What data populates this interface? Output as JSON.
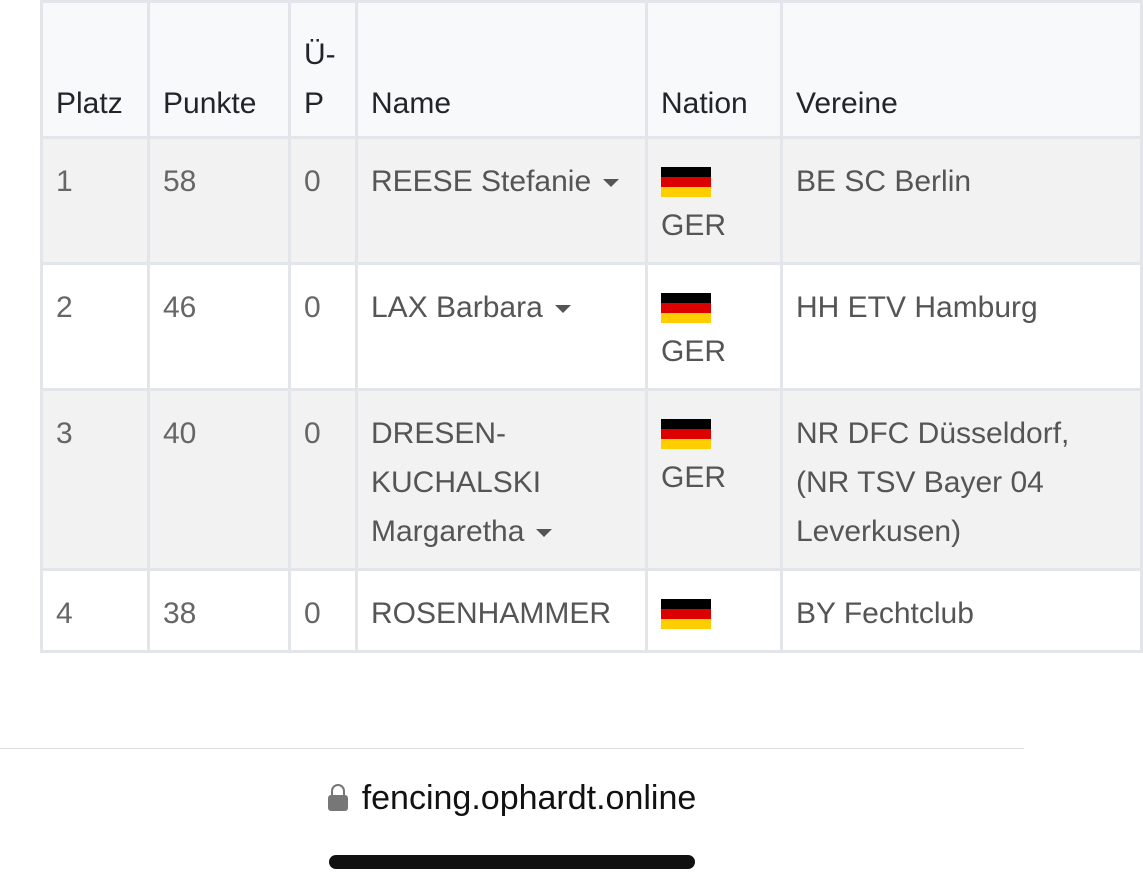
{
  "table": {
    "header": [
      "Platz",
      "Punkte",
      "Ü-P",
      "Name",
      "Nation",
      "Vereine"
    ],
    "rows": [
      [
        "1",
        "58",
        "0",
        "REESE Stefanie",
        "GER",
        "BE SC Berlin"
      ],
      [
        "2",
        "46",
        "0",
        "LAX Barbara",
        "GER",
        "HH ETV Hamburg"
      ],
      [
        "3",
        "40",
        "0",
        "DRESEN-KUCHALSKI Margaretha",
        "GER",
        "NR DFC Düsseldorf, (NR TSV Bayer 04 Leverkusen)"
      ],
      [
        "4",
        "38",
        "0",
        "ROSENHAMMER",
        null,
        "BY Fechtclub"
      ]
    ]
  },
  "browser": {
    "url": "fencing.ophardt.online"
  }
}
